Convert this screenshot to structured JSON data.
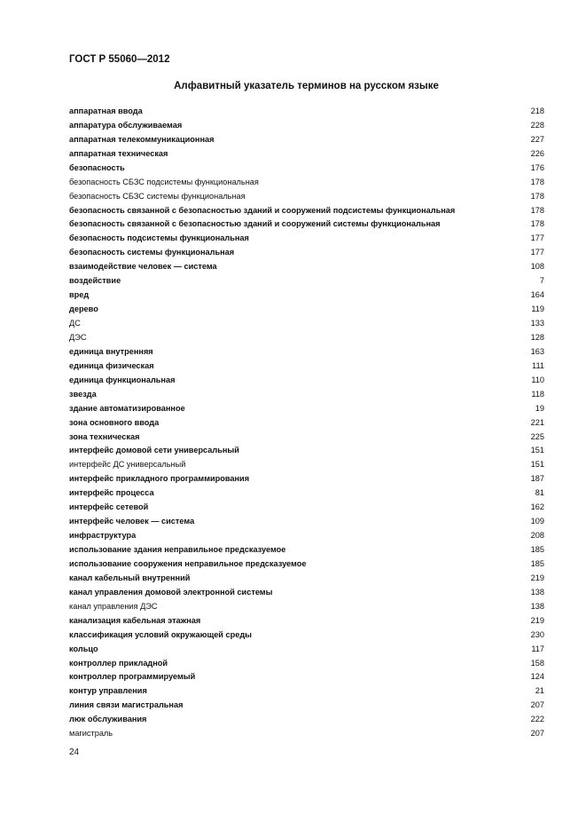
{
  "header": {
    "doc_code": "ГОСТ Р 55060—2012"
  },
  "title": "Алфавитный указатель терминов на русском языке",
  "entries": [
    {
      "term": "аппаратная ввода",
      "page": "218",
      "bold": true
    },
    {
      "term": "аппаратура обслуживаемая",
      "page": "228",
      "bold": true
    },
    {
      "term": "аппаратная телекоммуникационная",
      "page": "227",
      "bold": true
    },
    {
      "term": "аппаратная техническая",
      "page": "226",
      "bold": true
    },
    {
      "term": "безопасность",
      "page": "176",
      "bold": true
    },
    {
      "term": "безопасность СБЗС подсистемы функциональная",
      "page": "178",
      "bold": false
    },
    {
      "term": "безопасность СБЗС системы функциональная",
      "page": "178",
      "bold": false
    },
    {
      "term": "безопасность связанной с безопасностью зданий и сооружений подсистемы функциональная",
      "page": "178",
      "bold": true
    },
    {
      "term": "безопасность связанной с безопасностью зданий и сооружений системы функциональная",
      "page": "178",
      "bold": true
    },
    {
      "term": "безопасность подсистемы функциональная",
      "page": "177",
      "bold": true
    },
    {
      "term": "безопасность системы функциональная",
      "page": "177",
      "bold": true
    },
    {
      "term": "взаимодействие человек — система",
      "page": "108",
      "bold": true
    },
    {
      "term": "воздействие",
      "page": "7",
      "bold": true
    },
    {
      "term": "вред",
      "page": "164",
      "bold": true
    },
    {
      "term": "дерево",
      "page": "119",
      "bold": true
    },
    {
      "term": "ДС",
      "page": "133",
      "bold": false
    },
    {
      "term": "ДЭС",
      "page": "128",
      "bold": false
    },
    {
      "term": "единица внутренняя",
      "page": "163",
      "bold": true
    },
    {
      "term": "единица физическая",
      "page": "111",
      "bold": true
    },
    {
      "term": "единица функциональная",
      "page": "110",
      "bold": true
    },
    {
      "term": "звезда",
      "page": "118",
      "bold": true
    },
    {
      "term": "здание автоматизированное",
      "page": "19",
      "bold": true
    },
    {
      "term": "зона основного ввода",
      "page": "221",
      "bold": true
    },
    {
      "term": "зона техническая",
      "page": "225",
      "bold": true
    },
    {
      "term": "интерфейс домовой сети универсальный",
      "page": "151",
      "bold": true
    },
    {
      "term": "интерфейс ДС универсальный",
      "page": "151",
      "bold": false
    },
    {
      "term": "интерфейс прикладного программирования",
      "page": "187",
      "bold": true
    },
    {
      "term": "интерфейс процесса",
      "page": "81",
      "bold": true
    },
    {
      "term": "интерфейс сетевой",
      "page": "162",
      "bold": true
    },
    {
      "term": "интерфейс человек — система",
      "page": "109",
      "bold": true
    },
    {
      "term": "инфраструктура",
      "page": "208",
      "bold": true
    },
    {
      "term": "использование здания неправильное предсказуемое",
      "page": "185",
      "bold": true
    },
    {
      "term": "использование сооружения неправильное предсказуемое",
      "page": "185",
      "bold": true
    },
    {
      "term": "канал кабельный внутренний",
      "page": "219",
      "bold": true
    },
    {
      "term": "канал управления домовой электронной системы",
      "page": "138",
      "bold": true
    },
    {
      "term": "канал управления ДЭС",
      "page": "138",
      "bold": false
    },
    {
      "term": "канализация кабельная этажная",
      "page": "219",
      "bold": true
    },
    {
      "term": "классификация условий окружающей среды",
      "page": "230",
      "bold": true
    },
    {
      "term": "кольцо",
      "page": "117",
      "bold": true
    },
    {
      "term": "контроллер прикладной",
      "page": "158",
      "bold": true
    },
    {
      "term": "контроллер программируемый",
      "page": "124",
      "bold": true
    },
    {
      "term": "контур управления",
      "page": "21",
      "bold": true
    },
    {
      "term": "линия связи магистральная",
      "page": "207",
      "bold": true
    },
    {
      "term": "люк обслуживания",
      "page": "222",
      "bold": true
    },
    {
      "term": "магистраль",
      "page": "207",
      "bold": false
    }
  ],
  "footer": {
    "page_number": "24"
  }
}
